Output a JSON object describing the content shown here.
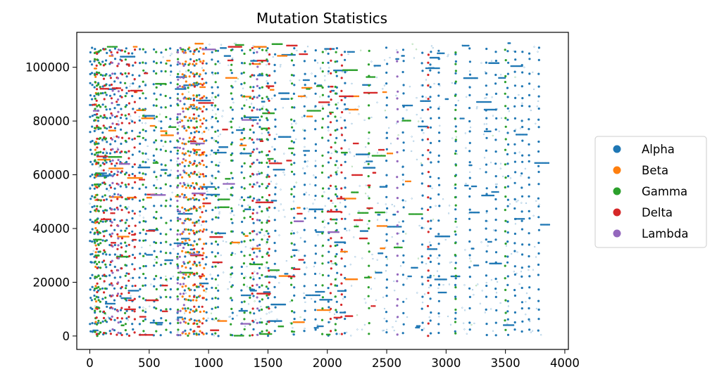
{
  "chart_data": {
    "type": "scatter",
    "title": "Mutation Statistics",
    "xlabel": "",
    "ylabel": "",
    "xlim": [
      -110,
      4030
    ],
    "ylim": [
      -5000,
      113000
    ],
    "xticks": [
      0,
      500,
      1000,
      1500,
      2000,
      2500,
      3000,
      3500,
      4000
    ],
    "xtick_labels": [
      "0",
      "500",
      "1000",
      "1500",
      "2000",
      "2500",
      "3000",
      "3500",
      "4000"
    ],
    "yticks": [
      0,
      20000,
      40000,
      60000,
      80000,
      100000
    ],
    "ytick_labels": [
      "0",
      "20000",
      "40000",
      "60000",
      "80000",
      "100000"
    ],
    "grid": false,
    "legend_position": "right",
    "point_y_range": [
      0,
      109000
    ],
    "series": [
      {
        "name": "Alpha",
        "color": "#1f77b4",
        "x_range": [
          0,
          3800
        ],
        "dense_columns": [
          5,
          20,
          40,
          70,
          110,
          140,
          170,
          210,
          260,
          310,
          360,
          420,
          470,
          540,
          600,
          680,
          740,
          800,
          850,
          880,
          920,
          980,
          1030,
          1080,
          1200,
          1280,
          1380,
          1430,
          1500,
          1560,
          1720,
          1810,
          1900,
          2010,
          2080,
          2150,
          2500,
          2640,
          2800,
          2870,
          2940,
          3080,
          3200,
          3340,
          3420,
          3520,
          3580,
          3640,
          3700,
          3780
        ]
      },
      {
        "name": "Beta",
        "color": "#ff7f0e",
        "x_range": [
          0,
          3600
        ],
        "dense_columns": [
          50,
          780,
          810,
          840,
          870,
          900,
          930,
          960
        ]
      },
      {
        "name": "Gamma",
        "color": "#2ca02c",
        "x_range": [
          0,
          3600
        ],
        "dense_columns": [
          45,
          60,
          75,
          90,
          130,
          300,
          450,
          560,
          640,
          740,
          830,
          900,
          1060,
          1190,
          1300,
          1350,
          1450,
          1490,
          1700,
          1960,
          2070,
          2350,
          3080,
          3500
        ]
      },
      {
        "name": "Delta",
        "color": "#d62728",
        "x_range": [
          0,
          3400
        ],
        "dense_columns": [
          60,
          120,
          180,
          230,
          270,
          330,
          380,
          880,
          950,
          1370,
          1510,
          2030,
          2120,
          2850
        ]
      },
      {
        "name": "Lambda",
        "color": "#9467bd",
        "x_range": [
          0,
          2700
        ],
        "dense_columns": [
          190,
          240,
          740,
          760,
          790,
          1410,
          2590
        ]
      }
    ]
  }
}
